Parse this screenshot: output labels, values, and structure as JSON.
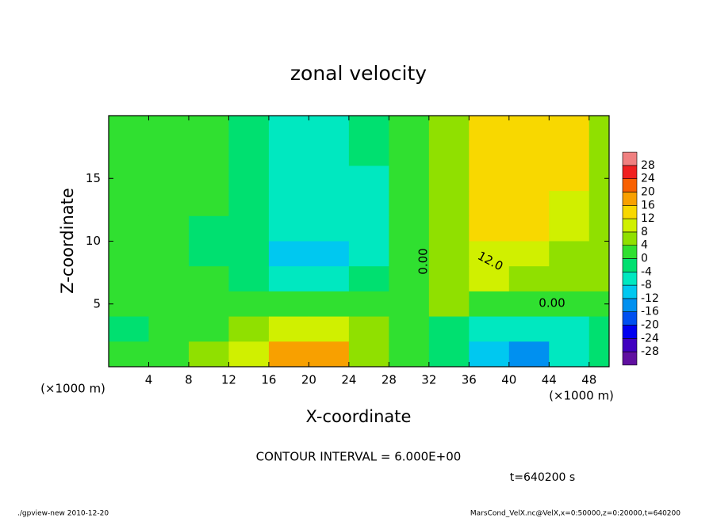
{
  "chart_data": {
    "type": "contour",
    "title": "zonal velocity",
    "xlabel": "X-coordinate",
    "ylabel": "Z-coordinate",
    "x_unit_label": "(×1000 m)",
    "contour_interval_label": "CONTOUR INTERVAL = 6.000E+00",
    "time_label": "t=640200 s",
    "footer_left": "./gpview-new   2010-12-20",
    "footer_right": "MarsCond_VelX.nc@VelX,x=0:50000,z=0:20000,t=640200",
    "contour_labels": [
      "12.0",
      "0.00",
      "0.00"
    ],
    "xlim": [
      0,
      50
    ],
    "ylim": [
      0,
      20
    ],
    "xticks": [
      4,
      8,
      12,
      16,
      20,
      24,
      28,
      32,
      36,
      40,
      44,
      48
    ],
    "yticks": [
      5,
      10,
      15
    ],
    "x": [
      2,
      6,
      10,
      14,
      18,
      22,
      26,
      30,
      34,
      38,
      42,
      46,
      50
    ],
    "y": [
      19,
      17,
      15,
      13,
      11,
      9,
      7,
      5,
      3,
      1
    ],
    "z": [
      [
        2,
        2,
        0,
        -2,
        -5,
        -5,
        -4,
        1,
        4,
        12,
        13,
        12,
        6
      ],
      [
        2,
        2,
        0,
        -3,
        -7,
        -6,
        -4,
        1,
        5,
        13,
        14,
        12,
        6
      ],
      [
        3,
        2,
        0,
        -3,
        -6,
        -6,
        -5,
        0,
        5,
        13,
        15,
        12,
        6
      ],
      [
        3,
        2,
        0,
        -4,
        -6,
        -6,
        -5,
        0,
        5,
        14,
        15,
        11,
        6
      ],
      [
        2,
        1,
        -1,
        -4,
        -7,
        -7,
        -5,
        0,
        5,
        13,
        14,
        8,
        6
      ],
      [
        1,
        0,
        -1,
        -4,
        -10,
        -9,
        -5,
        0,
        6,
        10,
        10,
        7,
        5
      ],
      [
        1,
        0,
        0,
        -2,
        -5,
        -6,
        -4,
        1,
        7,
        8,
        7,
        6,
        5
      ],
      [
        2,
        1,
        2,
        2,
        2,
        2,
        0,
        1,
        4,
        3,
        3,
        3,
        3
      ],
      [
        -1,
        0,
        3,
        6,
        10,
        9,
        4,
        1,
        -2,
        -5,
        -7,
        -5,
        -3
      ],
      [
        0,
        2,
        4,
        10,
        17,
        16,
        6,
        2,
        -4,
        -11,
        -13,
        -8,
        -4
      ]
    ],
    "clim": [
      -32,
      32
    ],
    "colorbar_ticks": [
      -28,
      -24,
      -20,
      -16,
      -12,
      -8,
      -4,
      0,
      4,
      8,
      12,
      16,
      20,
      24,
      28
    ],
    "colors": [
      "#6010a0",
      "#4000c0",
      "#0000f0",
      "#0050f0",
      "#0090f0",
      "#00c8f0",
      "#00e8c0",
      "#00e070",
      "#30e030",
      "#90e000",
      "#d0f000",
      "#f8d800",
      "#f8a000",
      "#f86000",
      "#f02020",
      "#f08080"
    ]
  }
}
